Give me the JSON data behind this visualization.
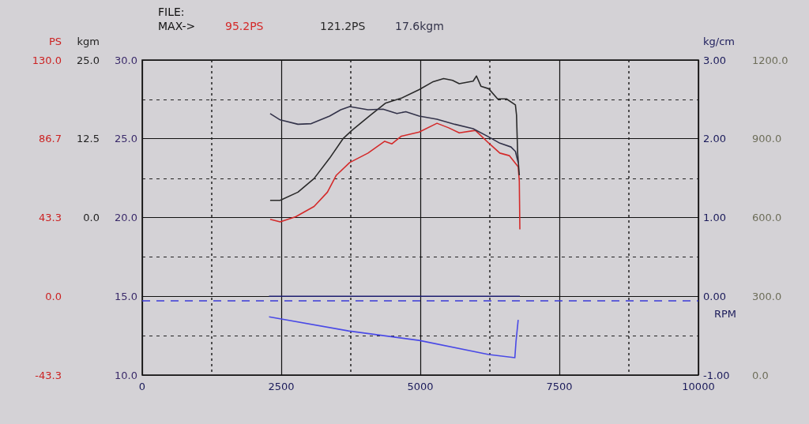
{
  "chart_data": [
    {
      "type": "line",
      "xlabel": "RPM",
      "ylabel": "PS",
      "y2label": "kgm",
      "annotations": [
        "FILE:",
        "MAX->",
        "95.2PS",
        "121.2PS",
        "17.6kgm"
      ],
      "xlim": [
        0,
        10000
      ],
      "xticks": [
        0,
        2500,
        5000,
        7500,
        10000
      ],
      "ylim": [
        -43.3,
        130
      ],
      "yticks": [
        -43.3,
        {
          "value": 0,
          "label": "0.0"
        },
        43.3,
        86.7,
        {
          "value": 130,
          "label": "130.0"
        }
      ],
      "y2lim": [
        -25,
        25
      ],
      "y2ticks": [
        {
          "value": 0,
          "label": "0.0"
        },
        12.5,
        {
          "value": 25,
          "label": "25.0"
        }
      ],
      "y3lim": [
        10,
        30
      ],
      "y3ticks": [
        {
          "value": 10,
          "label": "10.0"
        },
        {
          "value": 15,
          "label": "15.0"
        },
        {
          "value": 20,
          "label": "20.0"
        },
        {
          "value": 25,
          "label": "25.0"
        },
        {
          "value": 30,
          "label": "30.0"
        }
      ],
      "grid": true,
      "marker": "none",
      "series": [
        {
          "color": "#d42a2a",
          "x": [
            2300,
            2480,
            2760,
            3090,
            3330,
            3490,
            3730,
            4060,
            4360,
            4490,
            4660,
            4980,
            5300,
            5510,
            5700,
            5990,
            6230,
            6430,
            6600,
            6760,
            6780,
            6790
          ],
          "values": [
            42.4,
            41.0,
            43.8,
            49.4,
            57.3,
            66.6,
            73.6,
            78.8,
            85.3,
            83.9,
            88.1,
            90.4,
            95.2,
            92.7,
            89.9,
            91.3,
            84.3,
            78.8,
            77.4,
            71.3,
            63.4,
            36.8
          ]
        },
        {
          "color": "#2a2a2a",
          "x": [
            2300,
            2480,
            2800,
            3090,
            3370,
            3610,
            3770,
            4090,
            4370,
            4660,
            4980,
            5220,
            5420,
            5580,
            5700,
            5950,
            6010,
            6090,
            6230,
            6390,
            6550,
            6710,
            6730,
            6750,
            6780
          ],
          "values": [
            52.8,
            52.8,
            57.3,
            64.8,
            76.0,
            86.7,
            91.3,
            99.3,
            106.2,
            109.0,
            113.7,
            117.9,
            119.8,
            118.8,
            117.0,
            118.4,
            121.2,
            115.6,
            114.2,
            108.6,
            108.6,
            105.3,
            99.7,
            78.8,
            66.6
          ]
        },
        {
          "color": "#33334a",
          "axis": "y2",
          "x": [
            2300,
            2480,
            2800,
            3040,
            3370,
            3570,
            3730,
            4060,
            4330,
            4580,
            4740,
            4980,
            5300,
            5620,
            5950,
            6230,
            6430,
            6630,
            6710,
            6760
          ],
          "values": [
            16.5,
            15.5,
            14.8,
            14.9,
            16.1,
            17.1,
            17.6,
            17.1,
            17.2,
            16.5,
            16.8,
            16.1,
            15.6,
            14.8,
            14.1,
            12.8,
            11.8,
            11.2,
            10.5,
            8.7
          ]
        },
        {
          "color": "#4a4ae6",
          "axis": "y3",
          "x": [
            2280,
            3710,
            4980,
            6230,
            6700,
            6720,
            6760
          ],
          "values": [
            13.7,
            12.8,
            12.2,
            11.3,
            11.1,
            12.1,
            13.5
          ]
        }
      ],
      "ref_lines": [
        {
          "axis": "y3",
          "value": 14.7,
          "color": "#3a3ad8",
          "line_style": "dashed"
        }
      ]
    },
    {
      "type": "line",
      "ylabel": "kg/cm",
      "tick_labels": "y",
      "xlim": [
        0,
        10000
      ],
      "ylim": [
        -1,
        3
      ],
      "yticks": [
        {
          "value": -1,
          "label": "-1.00"
        },
        {
          "value": 0,
          "label": "0.00"
        },
        {
          "value": 1,
          "label": "1.00"
        },
        {
          "value": 2,
          "label": "2.00"
        },
        {
          "value": 3,
          "label": "3.00"
        }
      ],
      "y2lim": [
        0,
        1200
      ],
      "y2ticks": [
        {
          "value": 0,
          "label": "0.0"
        },
        {
          "value": 300,
          "label": "300.0"
        },
        {
          "value": 600,
          "label": "600.0"
        },
        {
          "value": 900,
          "label": "900.0"
        },
        {
          "value": 1200,
          "label": "1200.0"
        }
      ],
      "marker": "none",
      "series": [
        {
          "color": "#1c1c6e",
          "x": [
            2280,
            6790
          ],
          "values": [
            0,
            0
          ]
        }
      ]
    }
  ]
}
